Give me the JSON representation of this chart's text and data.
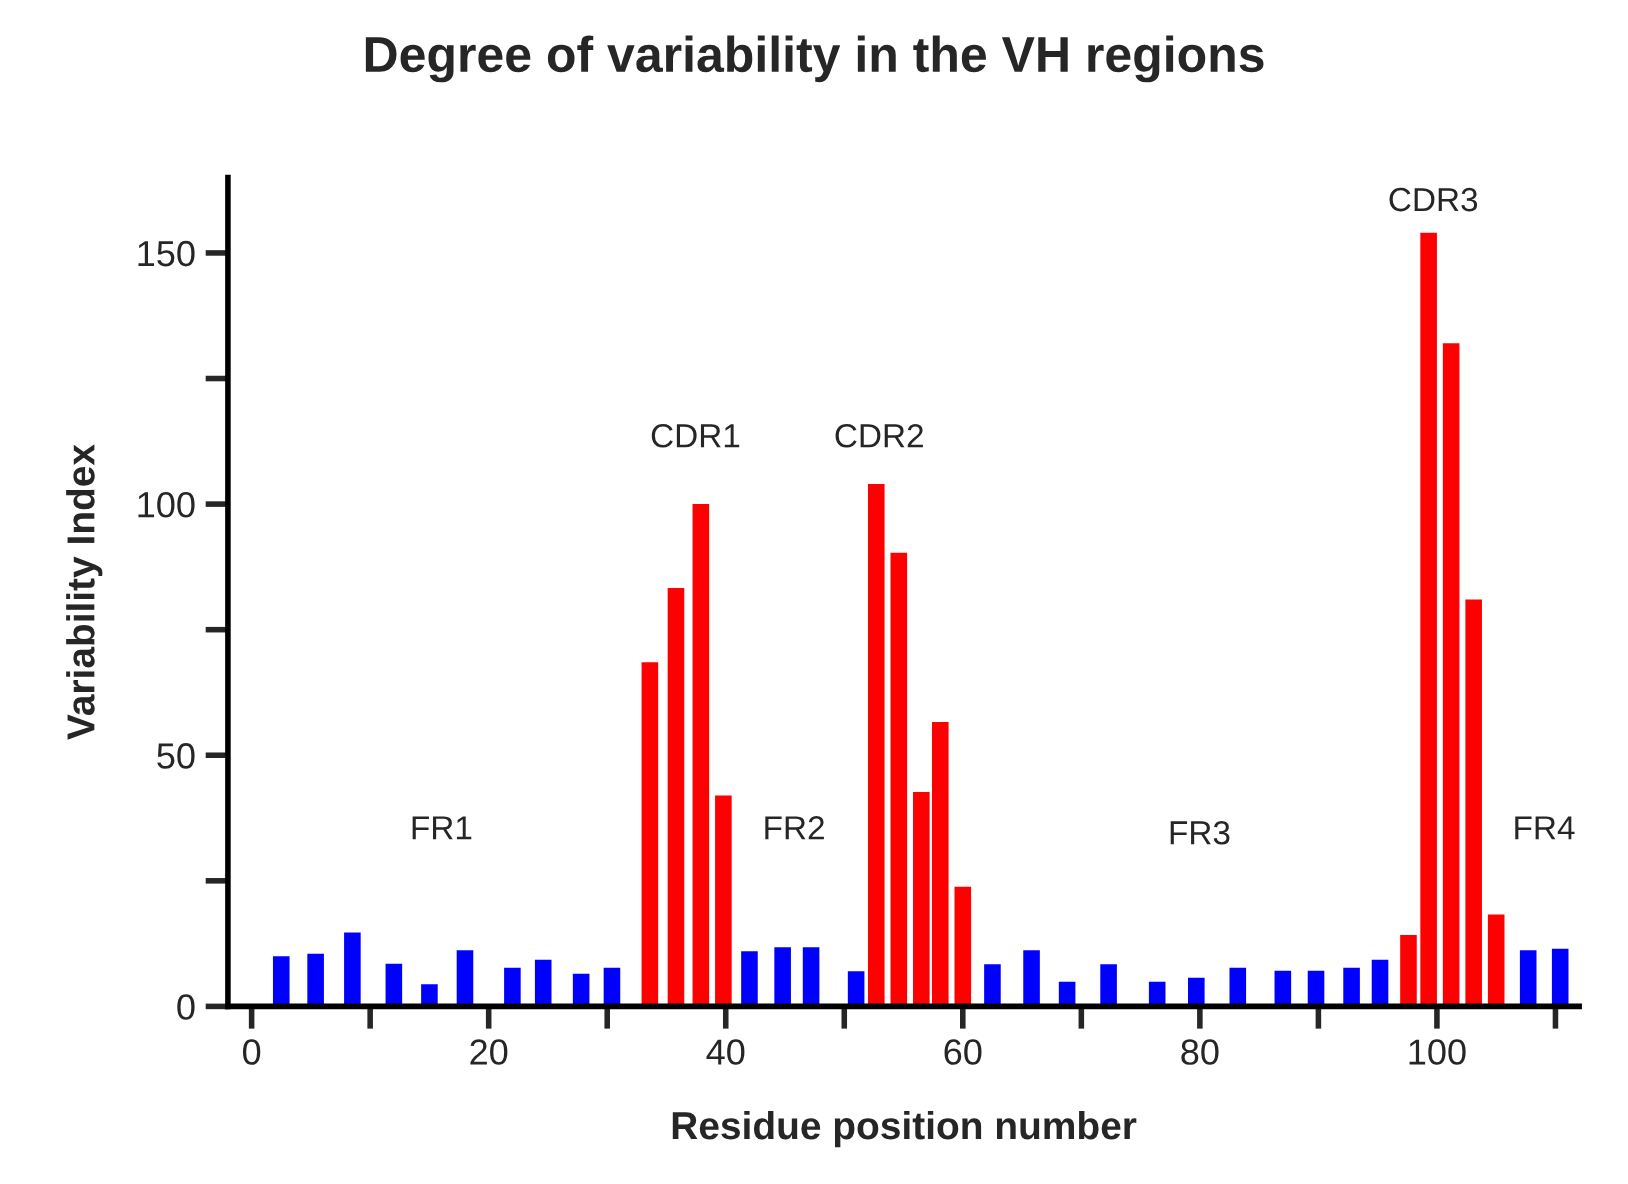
{
  "chart_data": {
    "type": "bar",
    "title": "Degree of variability in the VH regions",
    "xlabel": "Residue position number",
    "ylabel": "Variability Index",
    "series": [
      {
        "color": "#0000ff",
        "x": [
          2.5,
          5.4,
          8.5,
          12,
          15,
          18,
          22,
          24.6,
          27.8,
          30.4,
          42,
          44.8,
          47.2,
          51,
          62.5,
          65.8,
          68.8,
          72.3,
          76.4,
          79.7,
          83.2,
          87,
          89.8,
          92.8,
          95.2,
          107.7,
          110.4
        ],
        "values": [
          10,
          10.5,
          14.7,
          8.5,
          4.4,
          11.2,
          7.7,
          9.3,
          6.5,
          7.7,
          11,
          11.8,
          11.8,
          7,
          8.4,
          11.2,
          4.9,
          8.4,
          4.9,
          5.7,
          7.7,
          7.1,
          7.1,
          7.7,
          9.3,
          11.2,
          11.5
        ]
      },
      {
        "color": "#ff0000",
        "x": [
          33.6,
          35.8,
          37.9,
          39.8,
          52.7,
          54.6,
          56.5,
          58.1,
          60,
          97.6,
          99.3,
          101.2,
          103.1,
          105
        ],
        "values": [
          68.5,
          83.3,
          100,
          42,
          104,
          90.3,
          42.7,
          56.6,
          23.8,
          14.2,
          154,
          132,
          81,
          18.3
        ]
      }
    ],
    "annotations": [
      "FR1",
      "CDR1",
      "FR2",
      "CDR2",
      "FR3",
      "CDR3",
      "FR4"
    ],
    "xlim": [
      -2,
      112
    ],
    "ylim": [
      0,
      165
    ],
    "xticks": [
      0,
      {
        "value": 10,
        "label": null
      },
      20,
      {
        "value": 30,
        "label": null
      },
      40,
      {
        "value": 50,
        "label": null
      },
      60,
      {
        "value": 70,
        "label": null
      },
      80,
      {
        "value": 90,
        "label": null
      },
      100,
      {
        "value": 110,
        "label": null
      }
    ],
    "yticks": [
      0,
      {
        "value": 25,
        "label": null
      },
      50,
      {
        "value": 75,
        "label": null
      },
      100,
      {
        "value": 125,
        "label": null
      },
      150
    ],
    "grid": false,
    "legend": false
  }
}
